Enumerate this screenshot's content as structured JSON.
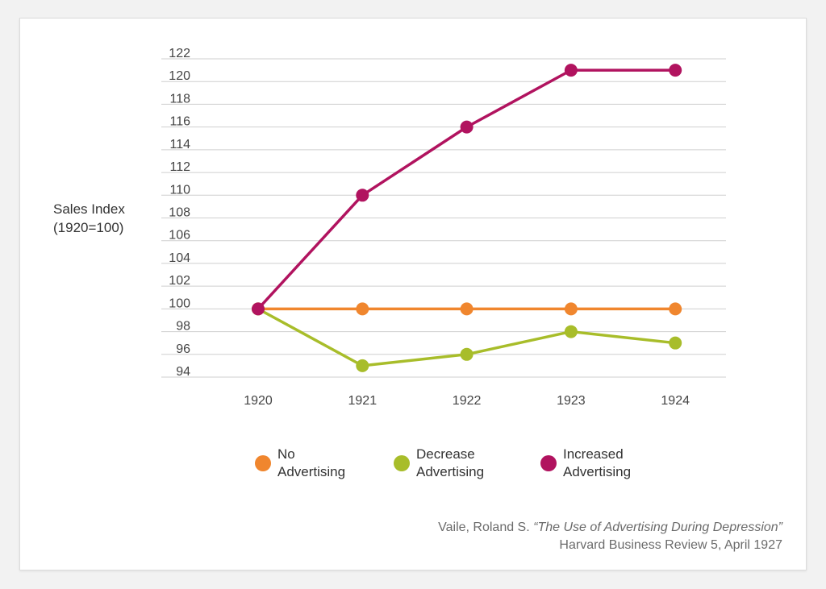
{
  "chart_data": {
    "type": "line",
    "ylabel": [
      "Sales Index",
      "(1920=100)"
    ],
    "xlabel": "",
    "categories": [
      "1920",
      "1921",
      "1922",
      "1923",
      "1924"
    ],
    "ylim": [
      94,
      122
    ],
    "yticks": [
      94,
      96,
      98,
      100,
      102,
      104,
      106,
      108,
      110,
      112,
      114,
      116,
      118,
      120,
      122
    ],
    "grid": "horizontal",
    "legend_position": "bottom",
    "series": [
      {
        "name": "No Advertising",
        "legend_lines": [
          "No",
          "Advertising"
        ],
        "color": "#f0862e",
        "values": [
          100,
          100,
          100,
          100,
          100
        ]
      },
      {
        "name": "Decrease Advertising",
        "legend_lines": [
          "Decrease",
          "Advertising"
        ],
        "color": "#a8bd2a",
        "values": [
          100,
          95,
          96,
          98,
          97
        ]
      },
      {
        "name": "Increased Advertising",
        "legend_lines": [
          "Increased",
          "Advertising"
        ],
        "color": "#b1135f",
        "values": [
          100,
          110,
          116,
          121,
          121
        ]
      }
    ]
  },
  "citation": {
    "author": "Vaile, Roland S. ",
    "title": "“The Use of Advertising During Depression”",
    "source": "Harvard Business Review 5, April 1927"
  }
}
